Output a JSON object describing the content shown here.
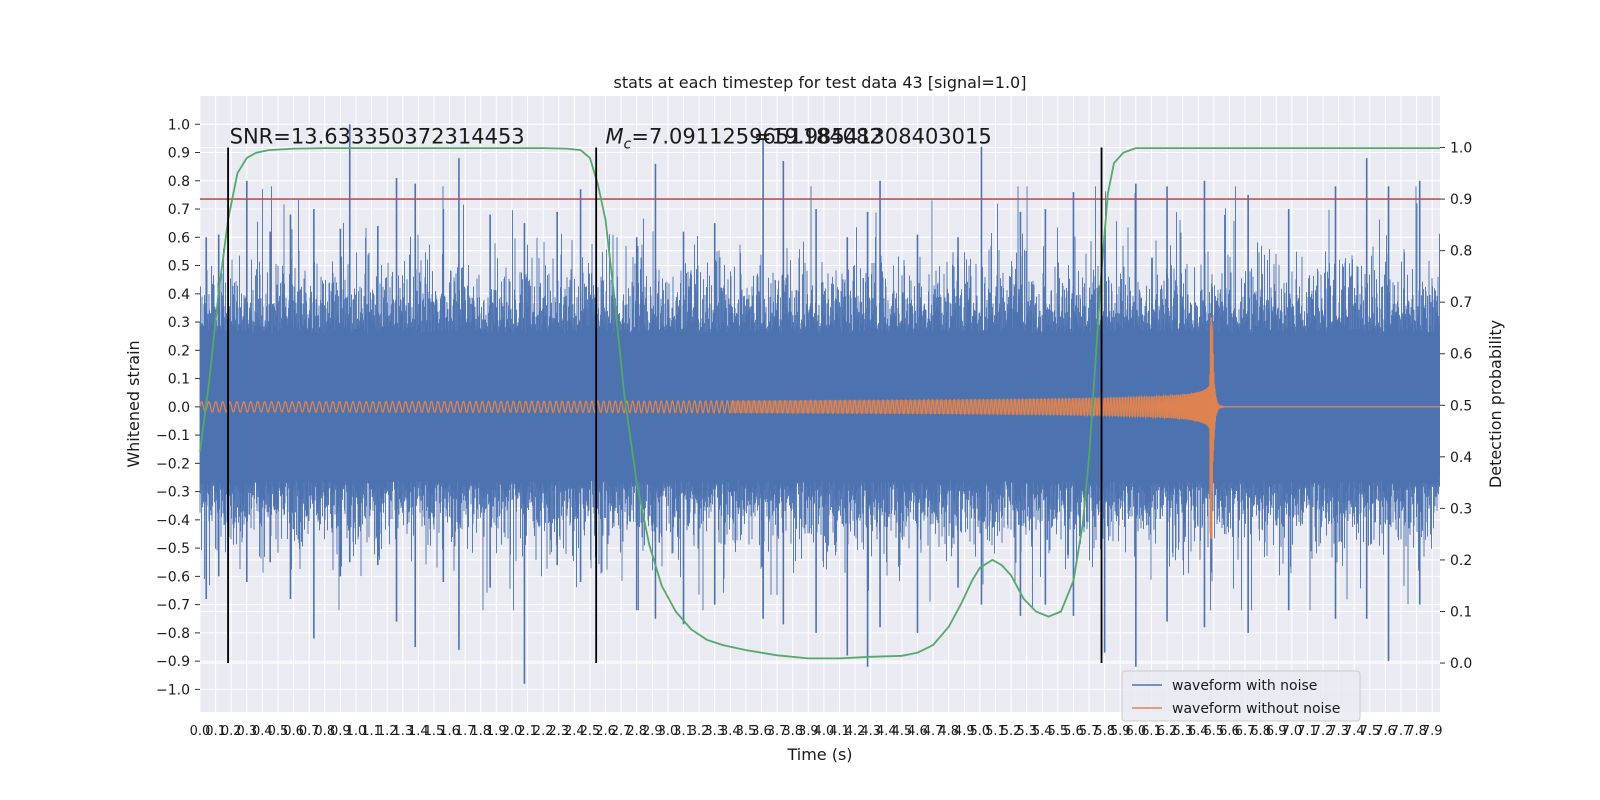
{
  "chart_data": {
    "type": "line",
    "title": "stats at each timestep for test data 43 [signal=1.0]",
    "xlabel": "Time (s)",
    "ylabel": "Whitened strain",
    "ylabel_right": "Detection probability",
    "xlim": [
      0.0,
      7.95
    ],
    "ylim": [
      -1.08,
      1.1
    ],
    "ylim_right": [
      -0.095,
      1.1
    ],
    "x_ticks": [
      "0.0",
      "0.1",
      "0.2",
      "0.3",
      "0.4",
      "0.5",
      "0.6",
      "0.7",
      "0.8",
      "0.9",
      "1.0",
      "1.1",
      "1.2",
      "1.3",
      "1.4",
      "1.5",
      "1.6",
      "1.7",
      "1.8",
      "1.9",
      "2.0",
      "2.1",
      "2.2",
      "2.3",
      "2.4",
      "2.5",
      "2.6",
      "2.7",
      "2.8",
      "2.9",
      "3.0",
      "3.1",
      "3.2",
      "3.3",
      "3.4",
      "3.5",
      "3.6",
      "3.7",
      "3.8",
      "3.9",
      "4.0",
      "4.1",
      "4.2",
      "4.3",
      "4.4",
      "4.5",
      "4.6",
      "4.7",
      "4.8",
      "4.9",
      "5.0",
      "5.1",
      "5.2",
      "5.3",
      "5.4",
      "5.5",
      "5.6",
      "5.7",
      "5.8",
      "5.9",
      "6.0",
      "6.1",
      "6.2",
      "6.3",
      "6.4",
      "6.5",
      "6.6",
      "6.7",
      "6.8",
      "6.9",
      "7.0",
      "7.1",
      "7.2",
      "7.3",
      "7.4",
      "7.5",
      "7.6",
      "7.7",
      "7.8",
      "7.9"
    ],
    "y_ticks": [
      "1.0",
      "0.9",
      "0.8",
      "0.7",
      "0.6",
      "0.5",
      "0.4",
      "0.3",
      "0.2",
      "0.1",
      "0.0",
      "−0.1",
      "−0.2",
      "−0.3",
      "−0.4",
      "−0.5",
      "−0.6",
      "−0.7",
      "−0.8",
      "−0.9",
      "−1.0"
    ],
    "y_tick_values": [
      1.0,
      0.9,
      0.8,
      0.7,
      0.6,
      0.5,
      0.4,
      0.3,
      0.2,
      0.1,
      0.0,
      -0.1,
      -0.2,
      -0.3,
      -0.4,
      -0.5,
      -0.6,
      -0.7,
      -0.8,
      -0.9,
      -1.0
    ],
    "y2_ticks": [
      "1.0",
      "0.9",
      "0.8",
      "0.7",
      "0.6",
      "0.5",
      "0.4",
      "0.3",
      "0.2",
      "0.1",
      "0.0"
    ],
    "y2_tick_values": [
      1.0,
      0.9,
      0.8,
      0.7,
      0.6,
      0.5,
      0.4,
      0.3,
      0.2,
      0.1,
      0.0
    ],
    "grid": true,
    "legend_position": "bottom-right",
    "threshold": {
      "value": 0.9,
      "axis": "right",
      "color": "#c44e52"
    },
    "vlines": [
      {
        "x": 0.18,
        "label": "SNR=13.633350372314453",
        "label_x": 0.19
      },
      {
        "x": 2.54,
        "label_mc": "Mc",
        "label_mc_sub": "c",
        "label_eq": "=7.0911259651184082",
        "label_eq2": "=19.98541308403015",
        "label_x": 2.6,
        "label_x2": 3.55
      },
      {
        "x": 5.78
      }
    ],
    "series": [
      {
        "name": "waveform with noise",
        "color": "#4c72b0",
        "style": "dense-noise",
        "amplitude_core": 0.26,
        "spikes": [
          {
            "x": 0.04,
            "top": 0.6,
            "bot": -0.68
          },
          {
            "x": 0.12,
            "top": 0.61,
            "bot": -0.6
          },
          {
            "x": 0.3,
            "top": 0.8,
            "bot": -0.62
          },
          {
            "x": 0.45,
            "top": 0.62,
            "bot": -0.55
          },
          {
            "x": 0.58,
            "top": 0.68,
            "bot": -0.68
          },
          {
            "x": 0.73,
            "top": 0.7,
            "bot": -0.82
          },
          {
            "x": 0.9,
            "top": 0.63,
            "bot": -0.6
          },
          {
            "x": 0.96,
            "top": 1.0,
            "bot": -0.55
          },
          {
            "x": 1.14,
            "top": 0.64,
            "bot": -0.56
          },
          {
            "x": 1.26,
            "top": 0.81,
            "bot": -0.76
          },
          {
            "x": 1.38,
            "top": 0.79,
            "bot": -0.85
          },
          {
            "x": 1.56,
            "top": 0.7,
            "bot": -0.62
          },
          {
            "x": 1.66,
            "top": 0.88,
            "bot": -0.86
          },
          {
            "x": 1.86,
            "top": 0.68,
            "bot": -0.64
          },
          {
            "x": 2.08,
            "top": 0.65,
            "bot": -0.98
          },
          {
            "x": 2.29,
            "top": 0.69,
            "bot": -0.56
          },
          {
            "x": 2.44,
            "top": 0.77,
            "bot": -0.62
          },
          {
            "x": 2.8,
            "top": 0.6,
            "bot": -0.72
          },
          {
            "x": 2.92,
            "top": 0.86,
            "bot": -0.75
          },
          {
            "x": 3.1,
            "top": 0.62,
            "bot": -0.77
          },
          {
            "x": 3.3,
            "top": 0.65,
            "bot": -0.7
          },
          {
            "x": 3.61,
            "top": 0.95,
            "bot": -0.75
          },
          {
            "x": 3.74,
            "top": 0.87,
            "bot": -0.77
          },
          {
            "x": 3.95,
            "top": 0.7,
            "bot": -0.8
          },
          {
            "x": 4.15,
            "top": 0.6,
            "bot": -0.88
          },
          {
            "x": 4.28,
            "top": 0.69,
            "bot": -0.92
          },
          {
            "x": 4.36,
            "top": 0.8,
            "bot": -0.78
          },
          {
            "x": 4.6,
            "top": 0.61,
            "bot": -0.8
          },
          {
            "x": 4.86,
            "top": 0.6,
            "bot": -0.64
          },
          {
            "x": 5.01,
            "top": 0.92,
            "bot": -0.7
          },
          {
            "x": 5.26,
            "top": 0.69,
            "bot": -0.74
          },
          {
            "x": 5.42,
            "top": 0.7,
            "bot": -0.7
          },
          {
            "x": 5.6,
            "top": 0.76,
            "bot": -0.74
          },
          {
            "x": 5.8,
            "top": 0.6,
            "bot": -0.87
          },
          {
            "x": 6.0,
            "top": 0.79,
            "bot": -0.92
          },
          {
            "x": 6.2,
            "top": 0.78,
            "bot": -0.76
          },
          {
            "x": 6.44,
            "top": 0.8,
            "bot": -0.78
          },
          {
            "x": 6.72,
            "top": 0.75,
            "bot": -0.8
          },
          {
            "x": 6.98,
            "top": 0.7,
            "bot": -0.72
          },
          {
            "x": 7.28,
            "top": 0.78,
            "bot": -0.75
          },
          {
            "x": 7.48,
            "top": 0.88,
            "bot": -0.75
          },
          {
            "x": 7.62,
            "top": 0.78,
            "bot": -0.9
          },
          {
            "x": 7.82,
            "top": 0.8,
            "bot": -0.7
          }
        ]
      },
      {
        "name": "waveform without noise",
        "color": "#dd8452",
        "style": "chirp",
        "merger_time": 6.49,
        "start_amplitude": 0.018,
        "merger_amplitude_top": 0.33,
        "merger_amplitude_bottom": -0.47,
        "start_frequency_hz": 22
      }
    ],
    "probability": {
      "color": "#55a868",
      "x": [
        0.0,
        0.06,
        0.12,
        0.18,
        0.24,
        0.3,
        0.36,
        0.44,
        0.6,
        0.8,
        1.0,
        1.4,
        1.8,
        2.2,
        2.35,
        2.44,
        2.5,
        2.55,
        2.6,
        2.66,
        2.72,
        2.8,
        2.88,
        2.96,
        3.05,
        3.15,
        3.25,
        3.35,
        3.5,
        3.7,
        3.9,
        4.1,
        4.3,
        4.5,
        4.6,
        4.7,
        4.8,
        4.88,
        4.95,
        5.0,
        5.08,
        5.14,
        5.2,
        5.28,
        5.36,
        5.44,
        5.52,
        5.6,
        5.66,
        5.7,
        5.74,
        5.78,
        5.82,
        5.86,
        5.92,
        6.0,
        6.2,
        6.6,
        7.0,
        7.5,
        7.95
      ],
      "values": [
        0.41,
        0.55,
        0.72,
        0.86,
        0.95,
        0.98,
        0.99,
        0.995,
        0.998,
        0.999,
        0.999,
        0.999,
        0.999,
        0.999,
        0.998,
        0.995,
        0.98,
        0.93,
        0.86,
        0.7,
        0.52,
        0.35,
        0.23,
        0.15,
        0.1,
        0.065,
        0.045,
        0.035,
        0.025,
        0.015,
        0.009,
        0.009,
        0.012,
        0.014,
        0.02,
        0.035,
        0.07,
        0.115,
        0.16,
        0.185,
        0.2,
        0.19,
        0.17,
        0.125,
        0.1,
        0.09,
        0.1,
        0.16,
        0.27,
        0.4,
        0.58,
        0.76,
        0.91,
        0.97,
        0.99,
        0.999,
        0.999,
        0.999,
        0.999,
        0.999,
        0.999
      ]
    }
  }
}
